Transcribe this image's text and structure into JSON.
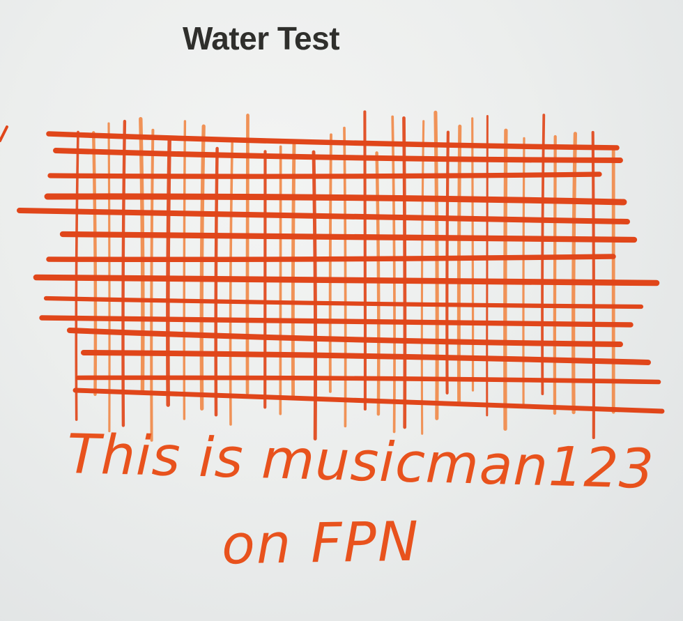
{
  "heading": {
    "text": "Water Test"
  },
  "handwriting": {
    "line1": "This is musicman123",
    "line2": "on FPN"
  },
  "colors": {
    "ink_dark": "#e0461a",
    "ink_light": "#f08a4a",
    "ink_text": "#e8521d",
    "paper": "#eceeed",
    "heading_text": "#2f2f2c"
  }
}
